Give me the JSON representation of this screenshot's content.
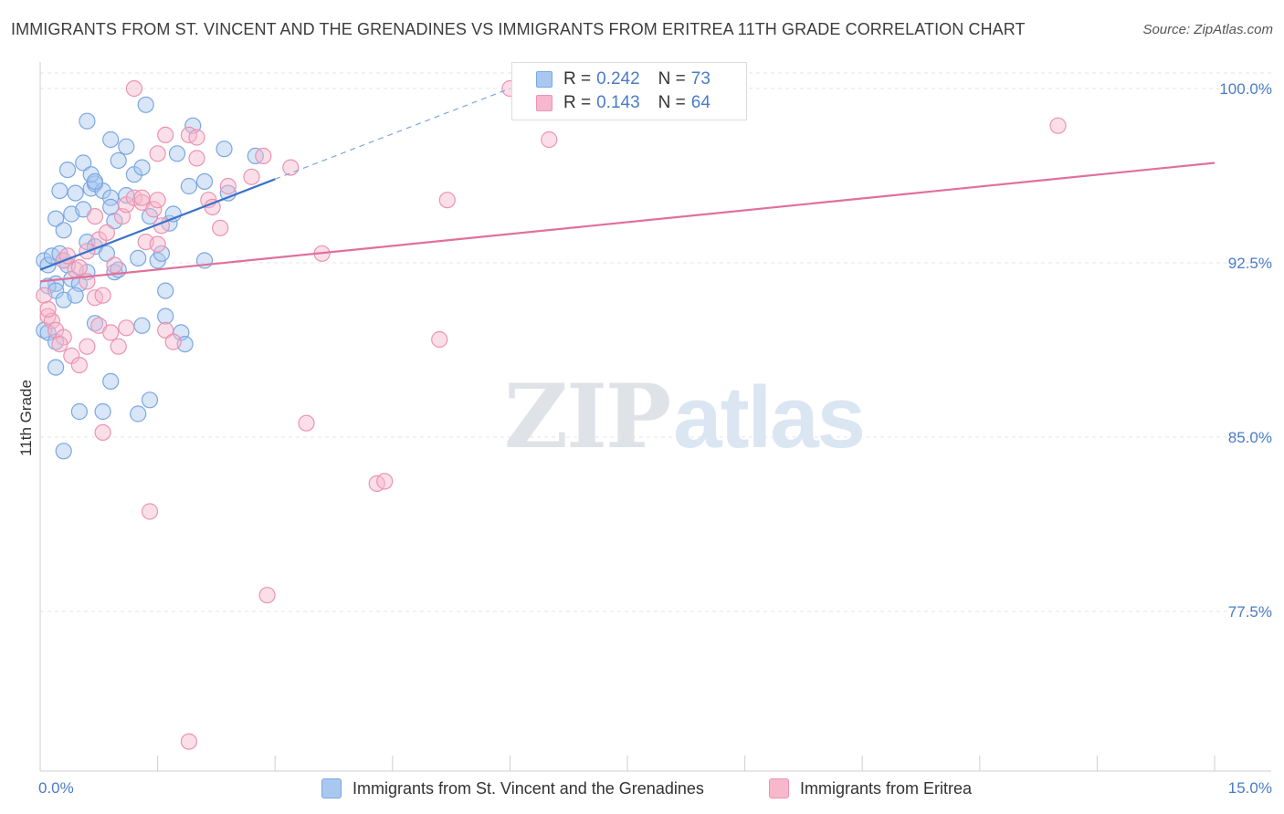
{
  "title": "IMMIGRANTS FROM ST. VINCENT AND THE GRENADINES VS IMMIGRANTS FROM ERITREA 11TH GRADE CORRELATION CHART",
  "source": "Source: ZipAtlas.com",
  "watermark": {
    "zip": "ZIP",
    "atlas": "atlas"
  },
  "legend": {
    "rows": [
      {
        "r_label": "R =",
        "r_value": "0.242",
        "n_label": "N =",
        "n_value": "73"
      },
      {
        "r_label": "R =",
        "r_value": "0.143",
        "n_label": "N =",
        "n_value": "64"
      }
    ]
  },
  "colors": {
    "blue_fill": "#a9c8f0",
    "blue_stroke": "#7aa7e0",
    "blue_line": "#3a72c8",
    "pink_fill": "#f7b8cc",
    "pink_stroke": "#ec93b1",
    "pink_line": "#e0709b",
    "grid": "#e4e4e4",
    "axis_text": "#4a7cc7"
  },
  "chart_data": {
    "type": "scatter",
    "title": "IMMIGRANTS FROM ST. VINCENT AND THE GRENADINES VS IMMIGRANTS FROM ERITREA 11TH GRADE CORRELATION CHART",
    "xlabel": "",
    "ylabel": "11th Grade",
    "xlim": [
      0,
      15
    ],
    "ylim": [
      71.5,
      101.5
    ],
    "x_ticks": [
      {
        "value": 0,
        "label": "0.0%"
      },
      {
        "value": 15,
        "label": "15.0%"
      }
    ],
    "y_ticks": [
      {
        "value": 100,
        "label": "100.0%"
      },
      {
        "value": 92.5,
        "label": "92.5%"
      },
      {
        "value": 85,
        "label": "85.0%"
      },
      {
        "value": 77.5,
        "label": "77.5%"
      }
    ],
    "grid": true,
    "legend_position": "top-center",
    "series": [
      {
        "name": "Immigrants from St. Vincent and the Grenadines",
        "color": "#a9c8f0",
        "trend": {
          "x": [
            0,
            3.0
          ],
          "y": [
            92.2,
            96.1
          ],
          "dashed_to": [
            6.0,
            100.0
          ]
        },
        "points": [
          [
            0.05,
            92.6
          ],
          [
            0.1,
            92.4
          ],
          [
            0.15,
            92.8
          ],
          [
            0.2,
            91.6
          ],
          [
            0.25,
            92.9
          ],
          [
            0.3,
            92.6
          ],
          [
            0.1,
            91.5
          ],
          [
            0.2,
            91.3
          ],
          [
            0.35,
            92.4
          ],
          [
            0.4,
            91.8
          ],
          [
            0.5,
            91.6
          ],
          [
            0.6,
            92.1
          ],
          [
            0.3,
            90.9
          ],
          [
            0.2,
            94.4
          ],
          [
            0.4,
            94.6
          ],
          [
            0.55,
            94.8
          ],
          [
            0.25,
            95.6
          ],
          [
            0.45,
            95.5
          ],
          [
            0.65,
            95.7
          ],
          [
            0.7,
            95.9
          ],
          [
            0.8,
            95.6
          ],
          [
            0.9,
            95.3
          ],
          [
            0.9,
            94.9
          ],
          [
            0.95,
            94.3
          ],
          [
            0.3,
            93.9
          ],
          [
            0.6,
            93.4
          ],
          [
            0.7,
            93.2
          ],
          [
            0.85,
            92.9
          ],
          [
            0.95,
            92.1
          ],
          [
            1.0,
            96.9
          ],
          [
            1.1,
            95.4
          ],
          [
            0.35,
            96.5
          ],
          [
            0.55,
            96.8
          ],
          [
            0.65,
            96.3
          ],
          [
            0.6,
            98.6
          ],
          [
            0.9,
            97.8
          ],
          [
            1.1,
            97.5
          ],
          [
            1.2,
            96.3
          ],
          [
            1.3,
            96.6
          ],
          [
            0.7,
            96.0
          ],
          [
            1.4,
            94.5
          ],
          [
            1.65,
            94.2
          ],
          [
            1.5,
            92.6
          ],
          [
            1.55,
            92.9
          ],
          [
            1.75,
            97.2
          ],
          [
            1.95,
            98.4
          ],
          [
            2.1,
            96.0
          ],
          [
            1.9,
            95.8
          ],
          [
            2.4,
            95.5
          ],
          [
            2.35,
            97.4
          ],
          [
            2.75,
            97.1
          ],
          [
            1.35,
            99.3
          ],
          [
            1.7,
            94.6
          ],
          [
            1.8,
            89.5
          ],
          [
            1.85,
            89.0
          ],
          [
            2.1,
            92.6
          ],
          [
            1.6,
            91.3
          ],
          [
            1.6,
            90.2
          ],
          [
            1.3,
            89.8
          ],
          [
            0.7,
            89.9
          ],
          [
            0.5,
            86.1
          ],
          [
            0.8,
            86.1
          ],
          [
            1.25,
            86.0
          ],
          [
            1.4,
            86.6
          ],
          [
            0.3,
            84.4
          ],
          [
            0.2,
            88.0
          ],
          [
            0.05,
            89.6
          ],
          [
            0.1,
            89.5
          ],
          [
            0.2,
            89.1
          ],
          [
            0.9,
            87.4
          ],
          [
            1.0,
            92.2
          ],
          [
            1.25,
            92.7
          ],
          [
            0.45,
            91.1
          ]
        ]
      },
      {
        "name": "Immigrants from Eritrea",
        "color": "#f7b8cc",
        "trend": {
          "x": [
            0,
            15
          ],
          "y": [
            91.7,
            96.8
          ]
        },
        "points": [
          [
            0.05,
            91.1
          ],
          [
            0.1,
            90.2
          ],
          [
            0.15,
            90.0
          ],
          [
            0.2,
            89.6
          ],
          [
            0.3,
            89.3
          ],
          [
            0.4,
            88.5
          ],
          [
            0.5,
            88.1
          ],
          [
            0.6,
            88.9
          ],
          [
            0.3,
            92.6
          ],
          [
            0.45,
            92.2
          ],
          [
            0.6,
            91.7
          ],
          [
            0.7,
            91.0
          ],
          [
            0.8,
            91.1
          ],
          [
            0.5,
            92.3
          ],
          [
            0.6,
            93.0
          ],
          [
            0.7,
            94.5
          ],
          [
            0.75,
            93.5
          ],
          [
            0.85,
            93.8
          ],
          [
            0.95,
            92.4
          ],
          [
            1.05,
            94.5
          ],
          [
            1.1,
            95.0
          ],
          [
            1.2,
            95.3
          ],
          [
            1.3,
            95.1
          ],
          [
            1.35,
            93.4
          ],
          [
            1.45,
            94.8
          ],
          [
            1.5,
            95.2
          ],
          [
            1.55,
            94.1
          ],
          [
            1.6,
            89.6
          ],
          [
            1.7,
            89.1
          ],
          [
            1.9,
            98.0
          ],
          [
            2.0,
            97.0
          ],
          [
            2.0,
            97.9
          ],
          [
            2.15,
            95.2
          ],
          [
            2.2,
            94.9
          ],
          [
            2.3,
            94.0
          ],
          [
            2.4,
            95.8
          ],
          [
            2.7,
            96.2
          ],
          [
            2.85,
            97.1
          ],
          [
            3.2,
            96.6
          ],
          [
            3.6,
            92.9
          ],
          [
            5.1,
            89.2
          ],
          [
            5.2,
            95.2
          ],
          [
            6.0,
            100.0
          ],
          [
            6.5,
            97.8
          ],
          [
            13.0,
            98.4
          ],
          [
            1.2,
            100.0
          ],
          [
            1.5,
            97.2
          ],
          [
            1.6,
            98.0
          ],
          [
            0.75,
            89.8
          ],
          [
            0.9,
            89.5
          ],
          [
            1.0,
            88.9
          ],
          [
            1.1,
            89.7
          ],
          [
            0.25,
            89.0
          ],
          [
            0.1,
            90.5
          ],
          [
            0.8,
            85.2
          ],
          [
            1.4,
            81.8
          ],
          [
            3.4,
            85.6
          ],
          [
            4.3,
            83.0
          ],
          [
            4.4,
            83.1
          ],
          [
            2.9,
            78.2
          ],
          [
            1.9,
            71.9
          ],
          [
            0.35,
            92.8
          ],
          [
            1.3,
            95.3
          ],
          [
            1.5,
            93.3
          ]
        ]
      }
    ]
  }
}
